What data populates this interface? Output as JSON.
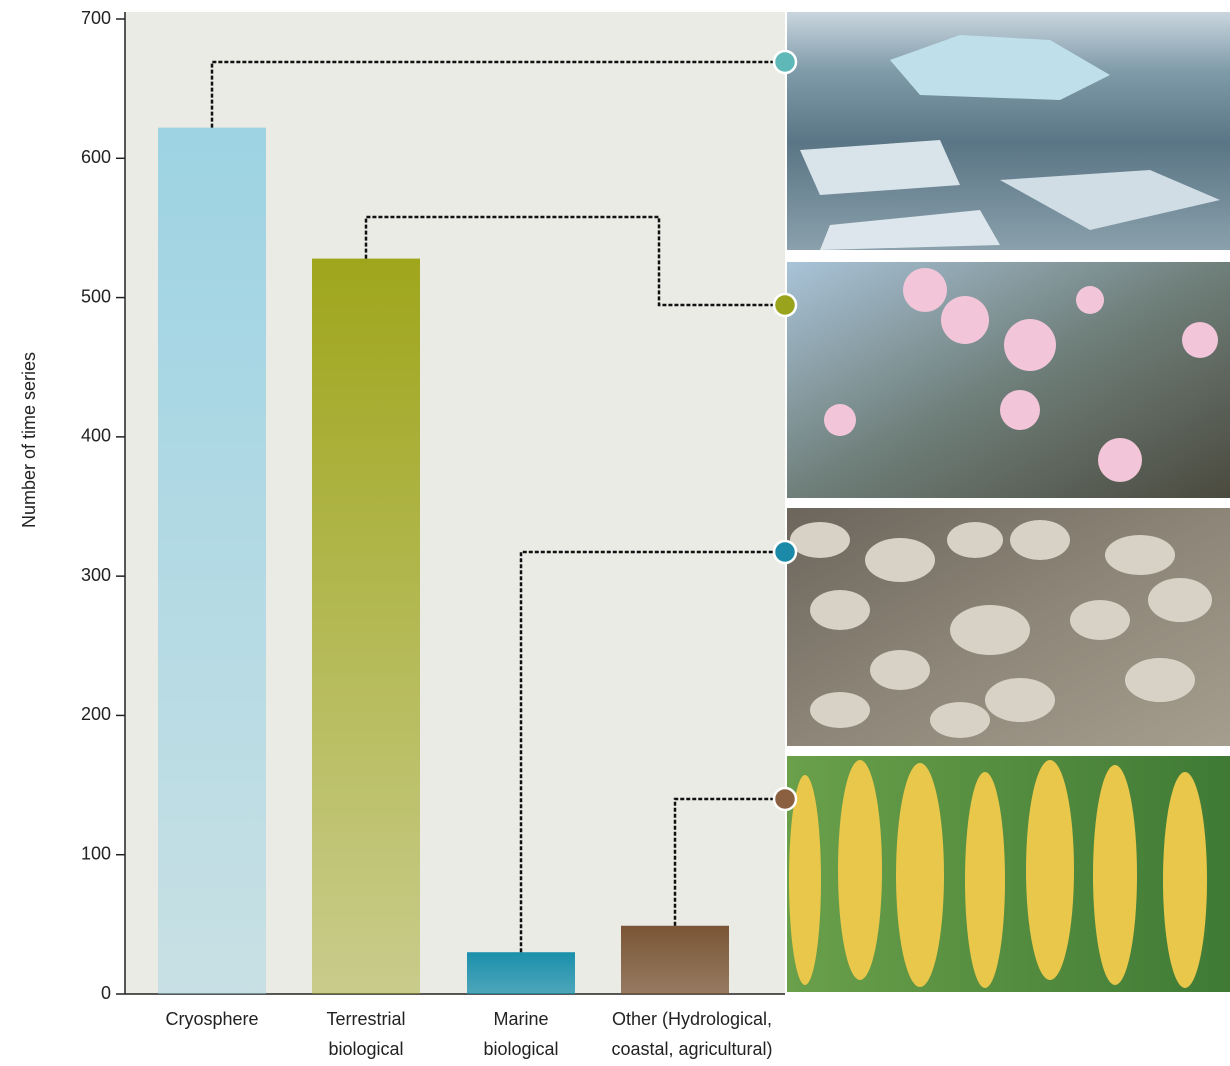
{
  "chart_data": {
    "type": "bar",
    "y_label": "Number of time series",
    "categories": [
      "Cryosphere",
      "Terrestrial biological",
      "Marine biological",
      "Other (Hydrological, coastal, agricultural)"
    ],
    "values": [
      622,
      528,
      30,
      49
    ],
    "colors": [
      "#9dd3e3",
      "#9fa61c",
      "#1a8fab",
      "#7a5535"
    ],
    "marker_colors": [
      "#5fb8b8",
      "#9aa31c",
      "#1a8aa8",
      "#8b6040"
    ],
    "ylim": [
      0,
      700
    ],
    "yticks": [
      0,
      100,
      200,
      300,
      400,
      500,
      600,
      700
    ]
  }
}
